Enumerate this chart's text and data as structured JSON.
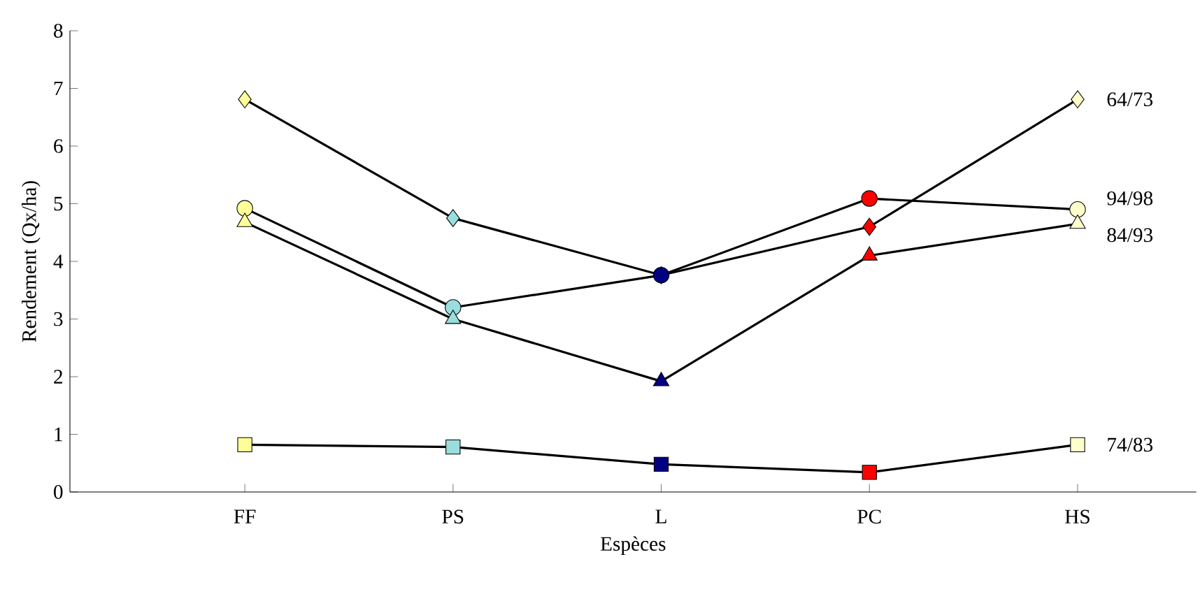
{
  "chart_data": {
    "type": "line",
    "xlabel": "Espèces",
    "ylabel": "Rendement (Qx/ha)",
    "categories": [
      "FF",
      "PS",
      "L",
      "PC",
      "HS"
    ],
    "ylim": [
      0,
      8
    ],
    "yticks": [
      0,
      1,
      2,
      3,
      4,
      5,
      6,
      7,
      8
    ],
    "grid": false,
    "line_style": "solid",
    "series": [
      {
        "name": "64/73",
        "color": "#000000",
        "marker": "diamond",
        "colors": [
          "#ffff99",
          "#99dddd",
          "#000080",
          "#ff0000",
          "#ffffcc"
        ],
        "values": [
          6.81,
          4.75,
          3.76,
          4.6,
          6.81
        ]
      },
      {
        "name": "94/98",
        "color": "#000000",
        "marker": "circle",
        "colors": [
          "#ffff99",
          "#99dddd",
          "#000080",
          "#ff0000",
          "#ffffcc"
        ],
        "values": [
          4.92,
          3.2,
          3.76,
          5.09,
          4.9
        ]
      },
      {
        "name": "84/93",
        "color": "#000000",
        "marker": "triangle",
        "colors": [
          "#ffff99",
          "#99dddd",
          "#000080",
          "#ff0000",
          "#ffffcc"
        ],
        "values": [
          4.68,
          3.0,
          1.92,
          4.1,
          4.65
        ]
      },
      {
        "name": "74/83",
        "color": "#000000",
        "marker": "square",
        "colors": [
          "#ffff99",
          "#99dddd",
          "#000080",
          "#ff0000",
          "#ffffcc"
        ],
        "values": [
          0.82,
          0.78,
          0.48,
          0.34,
          0.82
        ]
      }
    ]
  }
}
